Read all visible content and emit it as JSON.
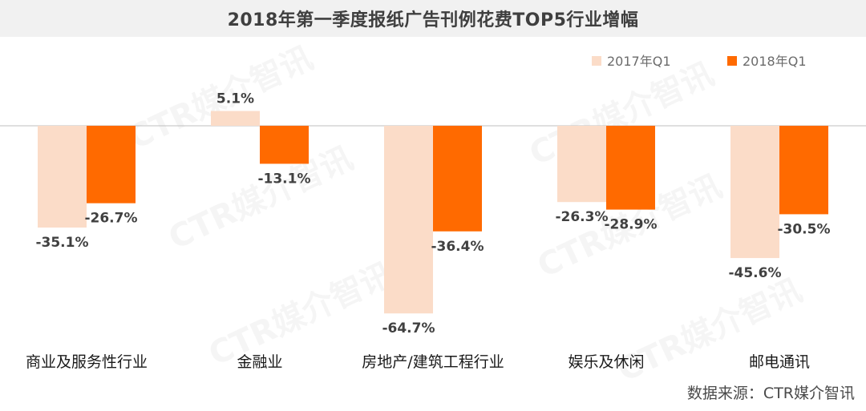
{
  "title": "2018年第一季度报纸广告刊例花费TOP5行业增幅",
  "source": "数据来源：CTR媒介智讯",
  "watermark": "CTR媒介智讯",
  "colors": {
    "series_2017": "#fbdcc8",
    "series_2018": "#ff6a00",
    "axis": "#bfbfbf",
    "label": "#404040"
  },
  "chart_data": {
    "type": "bar",
    "title": "2018年第一季度报纸广告刊例花费TOP5行业增幅",
    "categories": [
      "商业及服务性行业",
      "金融业",
      "房地产/建筑工程行业",
      "娱乐及休闲",
      "邮电通讯"
    ],
    "series": [
      {
        "name": "2017年Q1",
        "values": [
          -35.1,
          5.1,
          -64.7,
          -26.3,
          -45.6
        ]
      },
      {
        "name": "2018年Q1",
        "values": [
          -26.7,
          -13.1,
          -36.4,
          -28.9,
          -30.5
        ]
      }
    ],
    "value_format": "percent",
    "ylim": [
      -64.7,
      5.1
    ],
    "grid": false,
    "legend_position": "top-right"
  }
}
